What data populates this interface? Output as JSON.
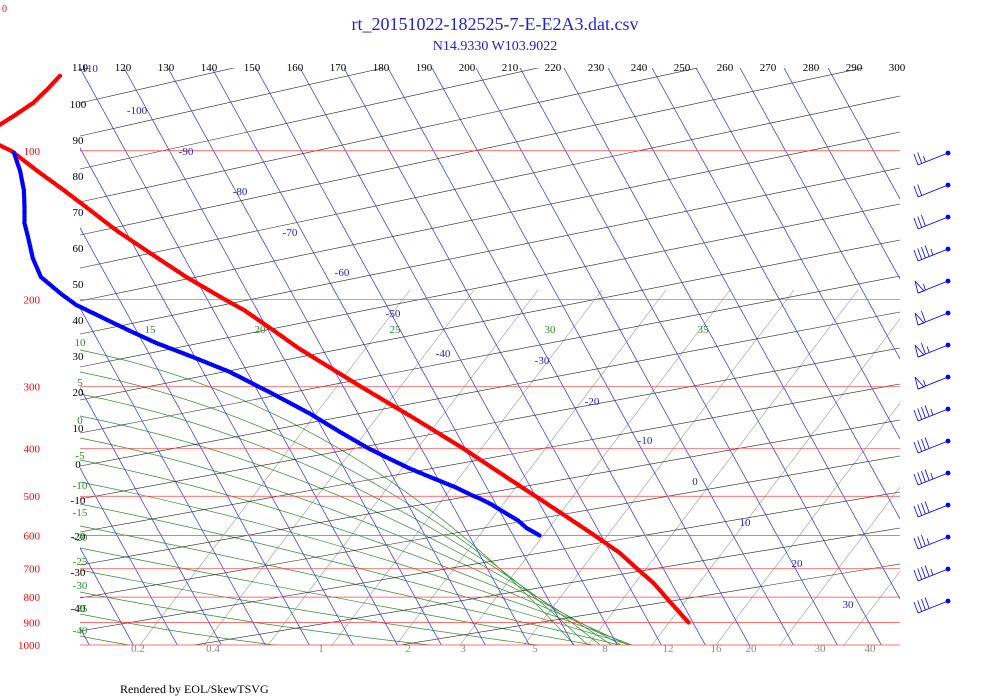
{
  "chart_data": {
    "type": "scatter",
    "title": "rt_20151022-182525-7-E-E2A3.dat.csv",
    "subtitle": "N14.9330 W103.9022",
    "corner_label": "0",
    "pressure_ticks": [
      100,
      200,
      300,
      400,
      500,
      600,
      700,
      800,
      900,
      1000
    ],
    "top_temp_ticks": [
      110,
      120,
      130,
      140,
      150,
      160,
      170,
      180,
      190,
      200,
      210,
      220,
      230,
      240,
      250,
      260,
      270,
      280,
      290,
      300
    ],
    "left_dry_adiabat_labels": [
      "100",
      "90",
      "80",
      "70",
      "60",
      "50",
      "40",
      "30",
      "20",
      "10",
      "0",
      "-10",
      "-20",
      "-30",
      "-40"
    ],
    "skew_isotherm_labels": [
      "-110",
      "-100",
      "-90",
      "-80",
      "-70",
      "-60",
      "-50",
      "-40",
      "-30",
      "-20",
      "-10",
      "0",
      "10",
      "20",
      "30"
    ],
    "moist_adiabat_labels": [
      "10",
      "5",
      "0",
      "-5",
      "-10",
      "-15",
      "-20",
      "-25",
      "-30",
      "-35",
      "-40",
      "15",
      "20",
      "25",
      "30",
      "35"
    ],
    "mixing_ratio_labels": [
      "0.2",
      "0.4",
      "1",
      "2",
      "3",
      "5",
      "8",
      "12",
      "16",
      "20",
      "30",
      "40"
    ],
    "series": [
      {
        "name": "Temperature",
        "color": "#ff0000",
        "points": [
          [
            900,
            19.0
          ],
          [
            850,
            18.0
          ],
          [
            800,
            17.0
          ],
          [
            750,
            16.0
          ],
          [
            700,
            14.0
          ],
          [
            650,
            12.0
          ],
          [
            600,
            8.5
          ],
          [
            550,
            4.5
          ],
          [
            500,
            0.0
          ],
          [
            450,
            -5.0
          ],
          [
            400,
            -10.5
          ],
          [
            350,
            -17.5
          ],
          [
            300,
            -26.0
          ],
          [
            260,
            -33.5
          ],
          [
            250,
            -35.5
          ],
          [
            230,
            -39.0
          ],
          [
            210,
            -43.0
          ],
          [
            200,
            -46.0
          ],
          [
            180,
            -52.0
          ],
          [
            160,
            -57.5
          ],
          [
            145,
            -62.0
          ],
          [
            130,
            -66.0
          ],
          [
            120,
            -69.0
          ],
          [
            110,
            -72.5
          ],
          [
            100,
            -76.0
          ],
          [
            96,
            -79.0
          ],
          [
            90,
            -77.0
          ],
          [
            85,
            -71.0
          ],
          [
            80,
            -65.0
          ],
          [
            75,
            -60.0
          ],
          [
            70,
            -55.0
          ]
        ]
      },
      {
        "name": "Dewpoint",
        "color": "#0000ff",
        "points": [
          [
            600,
            -4.0
          ],
          [
            580,
            -6.0
          ],
          [
            560,
            -7.0
          ],
          [
            540,
            -9.0
          ],
          [
            520,
            -11.0
          ],
          [
            505,
            -13.0
          ],
          [
            500,
            -14.0
          ],
          [
            480,
            -17.0
          ],
          [
            460,
            -21.0
          ],
          [
            440,
            -25.0
          ],
          [
            420,
            -28.5
          ],
          [
            400,
            -32.0
          ],
          [
            370,
            -36.5
          ],
          [
            340,
            -41.0
          ],
          [
            310,
            -47.0
          ],
          [
            280,
            -54.0
          ],
          [
            260,
            -61.0
          ],
          [
            245,
            -67.0
          ],
          [
            230,
            -72.0
          ],
          [
            215,
            -77.0
          ],
          [
            205,
            -80.5
          ],
          [
            195,
            -82.5
          ],
          [
            180,
            -85.0
          ],
          [
            165,
            -84.5
          ],
          [
            150,
            -83.0
          ],
          [
            140,
            -82.0
          ],
          [
            130,
            -80.0
          ],
          [
            120,
            -78.0
          ],
          [
            110,
            -76.5
          ],
          [
            100,
            -75.5
          ]
        ]
      }
    ],
    "wind_barbs": [
      {
        "speed_kt": 25
      },
      {
        "speed_kt": 20
      },
      {
        "speed_kt": 30
      },
      {
        "speed_kt": 45
      },
      {
        "speed_kt": 55
      },
      {
        "speed_kt": 60
      },
      {
        "speed_kt": 65
      },
      {
        "speed_kt": 55
      },
      {
        "speed_kt": 45
      },
      {
        "speed_kt": 40
      },
      {
        "speed_kt": 45
      },
      {
        "speed_kt": 40
      },
      {
        "speed_kt": 35
      },
      {
        "speed_kt": 45
      },
      {
        "speed_kt": 40
      }
    ]
  },
  "footer": "Rendered by EOL/SkewTSVG"
}
